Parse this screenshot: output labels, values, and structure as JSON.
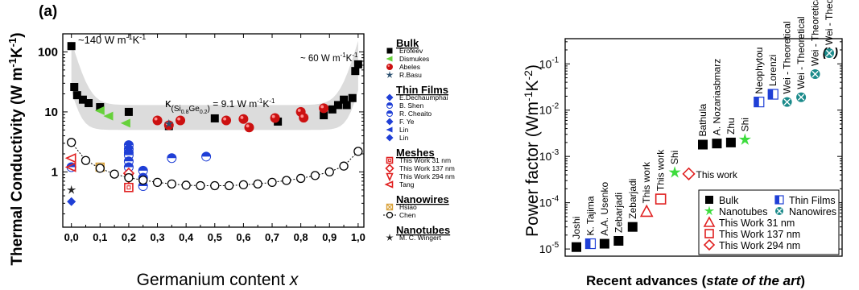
{
  "chart_data": [
    {
      "panel_label": "(a)",
      "type": "scatter",
      "xlabel": "Germanium content x",
      "ylabel": "Thermal Conductivity (W m-1K-1)",
      "x_ticks": [
        "0,0",
        "0,1",
        "0,2",
        "0,3",
        "0,4",
        "0,5",
        "0,6",
        "0,7",
        "0,8",
        "0,9",
        "1,0"
      ],
      "y_ticks": [
        "1",
        "10",
        "100"
      ],
      "xlim": [
        -0.03,
        1.02
      ],
      "ylim": [
        0.12,
        200
      ],
      "yscale": "log",
      "annotations": {
        "left_peak": "~140 W m-1K-1",
        "right_peak": "~ 60 W m-1K-1",
        "kappa_label": "κ(Si0.8Ge0.2) = 9.1 W m-1K-1"
      },
      "legend_groups": [
        {
          "heading": "Bulk",
          "items": [
            "Erofeev",
            "Dismukes",
            "Abeles",
            "R.Basu"
          ]
        },
        {
          "heading": "Thin Films",
          "items": [
            "E.Dechaumphai",
            "B. Shen",
            "R. Cheaito",
            "F. Ye",
            "Lin",
            "Lin"
          ]
        },
        {
          "heading": "Meshes",
          "items": [
            "This Work  31  nm",
            "This Work  137 nm",
            "This Work  294 nm",
            "Tang"
          ]
        },
        {
          "heading": "Nanowires",
          "items": [
            "Hsiao",
            "Chen"
          ]
        },
        {
          "heading": "Nanotubes",
          "items": [
            "M. C. Wingert"
          ]
        }
      ],
      "series": [
        {
          "name": "Erofeev",
          "marker": "square",
          "color": "#000000",
          "x": [
            0.0,
            0.01,
            0.02,
            0.04,
            0.06,
            0.1,
            0.2,
            0.34,
            0.5,
            0.72,
            0.88,
            0.91,
            0.93,
            0.95,
            0.96,
            0.98,
            0.99,
            1.0
          ],
          "y": [
            125,
            26,
            19,
            16,
            14,
            12,
            10,
            5.8,
            7.8,
            6.9,
            8.8,
            11,
            13,
            16,
            13,
            17,
            48,
            62
          ]
        },
        {
          "name": "Dismukes",
          "marker": "triangle-left",
          "color": "#66d13a",
          "x": [
            0.1,
            0.13,
            0.19
          ],
          "y": [
            10.5,
            8.5,
            6.5
          ]
        },
        {
          "name": "Abeles",
          "marker": "circle",
          "color": "#cc1111",
          "x": [
            0.3,
            0.34,
            0.38,
            0.54,
            0.6,
            0.62,
            0.71,
            0.8,
            0.81,
            0.88
          ],
          "y": [
            7.2,
            6.0,
            7.2,
            7.2,
            7.6,
            5.5,
            7.9,
            10,
            8,
            11.5
          ]
        },
        {
          "name": "R.Basu",
          "marker": "star",
          "color": "#2a4f6e",
          "x": [
            0.34
          ],
          "y": [
            6.3
          ]
        },
        {
          "name": "Thin films",
          "marker": "half-circle",
          "color": "#1f3fd6",
          "x": [
            0.0,
            0.2,
            0.2,
            0.2,
            0.2,
            0.2,
            0.2,
            0.25,
            0.25,
            0.25,
            0.35,
            0.47
          ],
          "y": [
            1.2,
            2.8,
            2.4,
            2.1,
            1.9,
            1.5,
            1.2,
            1.05,
            0.8,
            0.58,
            1.7,
            1.8
          ]
        },
        {
          "name": "Lin",
          "marker": "diamond",
          "color": "#1f3fd6",
          "x": [
            0.0
          ],
          "y": [
            0.32
          ]
        },
        {
          "name": "This Work 31 nm",
          "marker": "open-square",
          "color": "#e02020",
          "x": [
            0.2
          ],
          "y": [
            0.55
          ]
        },
        {
          "name": "This Work 137 nm",
          "marker": "open-diamond",
          "color": "#e02020",
          "x": [
            0.2
          ],
          "y": [
            0.95
          ]
        },
        {
          "name": "This Work 294 nm",
          "marker": "open-triangle-down",
          "color": "#e02020",
          "x": [
            0.2
          ],
          "y": [
            0.78
          ]
        },
        {
          "name": "Tang",
          "marker": "open-triangle-left",
          "color": "#e02020",
          "x": [
            0.0,
            0.0
          ],
          "y": [
            1.7,
            1.2
          ]
        },
        {
          "name": "Hsiao",
          "marker": "crossed-square",
          "color": "#d9a23a",
          "x": [
            0.1
          ],
          "y": [
            1.2
          ]
        },
        {
          "name": "Chen",
          "marker": "open-circle-line",
          "color": "#000000",
          "x": [
            0.0,
            0.05,
            0.1,
            0.15,
            0.2,
            0.25,
            0.3,
            0.35,
            0.4,
            0.45,
            0.5,
            0.55,
            0.6,
            0.65,
            0.7,
            0.75,
            0.8,
            0.85,
            0.9,
            0.95,
            1.0
          ],
          "y": [
            3.1,
            1.55,
            1.15,
            0.92,
            0.8,
            0.73,
            0.67,
            0.63,
            0.6,
            0.59,
            0.59,
            0.59,
            0.61,
            0.63,
            0.67,
            0.72,
            0.78,
            0.87,
            1.0,
            1.25,
            2.2
          ]
        },
        {
          "name": "M. C. Wingert",
          "marker": "star",
          "color": "#222222",
          "x": [
            0.0
          ],
          "y": [
            0.5
          ]
        }
      ]
    },
    {
      "panel_label": "(b)",
      "type": "scatter",
      "xlabel": "Recent advances (state of the art)",
      "ylabel": "Power factor (Wm-1K-2)",
      "y_ticks": [
        "10-5",
        "10-4",
        "10-3",
        "10-2",
        "10-1"
      ],
      "ylim": [
        7e-06,
        0.35
      ],
      "yscale": "log",
      "legend": [
        {
          "label": "Bulk",
          "marker": "square"
        },
        {
          "label": "Thin Films",
          "marker": "half-square"
        },
        {
          "label": "Nanotubes",
          "marker": "star"
        },
        {
          "label": "Nanowires",
          "marker": "crossed-circle"
        },
        {
          "label": "This Work 31 nm",
          "marker": "open-triangle"
        },
        {
          "label": "This Work 137 nm",
          "marker": "open-square"
        },
        {
          "label": "This Work 294 nm",
          "marker": "open-diamond"
        }
      ],
      "points": [
        {
          "label": "Joshi",
          "value": 1.1e-05,
          "type": "bulk"
        },
        {
          "label": "K. Tajima",
          "value": 1.3e-05,
          "type": "thin"
        },
        {
          "label": "A.A. Usenko",
          "value": 1.3e-05,
          "type": "bulk"
        },
        {
          "label": "Zebarjadi",
          "value": 1.5e-05,
          "type": "bulk"
        },
        {
          "label": "Zebarjadi",
          "value": 3e-05,
          "type": "bulk"
        },
        {
          "label": "This work",
          "value": 6.5e-05,
          "type": "tri"
        },
        {
          "label": "This work",
          "value": 0.00012,
          "type": "osq"
        },
        {
          "label": "Shi",
          "value": 0.00045,
          "type": "tube"
        },
        {
          "label": "This work",
          "value": 0.00042,
          "type": "odia"
        },
        {
          "label": "Bathula",
          "value": 0.0018,
          "type": "bulk"
        },
        {
          "label": "A. Nozariasbmarz",
          "value": 0.0019,
          "type": "bulk"
        },
        {
          "label": "Zhu",
          "value": 0.002,
          "type": "bulk"
        },
        {
          "label": "Shi",
          "value": 0.0023,
          "type": "tube"
        },
        {
          "label": "Neophytou",
          "value": 0.015,
          "type": "thin"
        },
        {
          "label": "Lorenzi",
          "value": 0.022,
          "type": "thin"
        },
        {
          "label": "Wei - Theoretical",
          "value": 0.015,
          "type": "wire"
        },
        {
          "label": "Wei - Theoretical",
          "value": 0.019,
          "type": "wire"
        },
        {
          "label": "Wei - Theoretical",
          "value": 0.06,
          "type": "wire"
        },
        {
          "label": "Wei - Theoretical",
          "value": 0.17,
          "type": "wire"
        }
      ]
    }
  ]
}
